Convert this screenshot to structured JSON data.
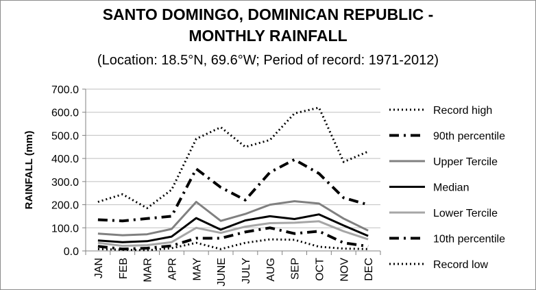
{
  "chart_data": {
    "type": "line",
    "title": "SANTO DOMINGO, DOMINICAN REPUBLIC -",
    "title_line2": "MONTHLY RAINFALL",
    "subtitle": "(Location: 18.5°N, 69.6°W; Period of record: 1971-2012)",
    "xlabel": "",
    "ylabel": "RAINFALL (mm)",
    "ylim": [
      0,
      700
    ],
    "yticks": [
      0,
      100,
      200,
      300,
      400,
      500,
      600,
      700
    ],
    "ytick_labels": [
      "0.0",
      "100.0",
      "200.0",
      "300.0",
      "400.0",
      "500.0",
      "600.0",
      "700.0"
    ],
    "categories": [
      "JAN",
      "FEB",
      "MAR",
      "APR",
      "MAY",
      "JUNE",
      "JULY",
      "AUG",
      "SEP",
      "OCT",
      "NOV",
      "DEC"
    ],
    "legend_position": "right",
    "grid": "horizontal",
    "series": [
      {
        "name": "Record high",
        "color": "#000000",
        "style": "dotted",
        "values": [
          212,
          245,
          185,
          265,
          485,
          535,
          450,
          480,
          595,
          620,
          385,
          430
        ]
      },
      {
        "name": "90th percentile",
        "color": "#000000",
        "style": "dashdot",
        "values": [
          135,
          130,
          140,
          150,
          355,
          275,
          220,
          340,
          395,
          335,
          230,
          200
        ]
      },
      {
        "name": "Upper Tercile",
        "color": "#808080",
        "style": "solid",
        "values": [
          75,
          68,
          72,
          95,
          212,
          130,
          160,
          200,
          215,
          205,
          140,
          88
        ]
      },
      {
        "name": "Median",
        "color": "#000000",
        "style": "solid",
        "values": [
          45,
          38,
          42,
          62,
          142,
          92,
          132,
          150,
          138,
          158,
          110,
          65
        ]
      },
      {
        "name": "Lower Tercile",
        "color": "#a6a6a6",
        "style": "solid",
        "values": [
          35,
          22,
          25,
          38,
          100,
          78,
          105,
          120,
          122,
          128,
          85,
          50
        ]
      },
      {
        "name": "10th percentile",
        "color": "#000000",
        "style": "dashdot",
        "values": [
          20,
          8,
          12,
          22,
          55,
          55,
          82,
          100,
          75,
          85,
          35,
          20
        ]
      },
      {
        "name": "Record low",
        "color": "#000000",
        "style": "dotted",
        "values": [
          8,
          5,
          3,
          12,
          35,
          8,
          35,
          50,
          48,
          18,
          10,
          8
        ]
      }
    ]
  }
}
